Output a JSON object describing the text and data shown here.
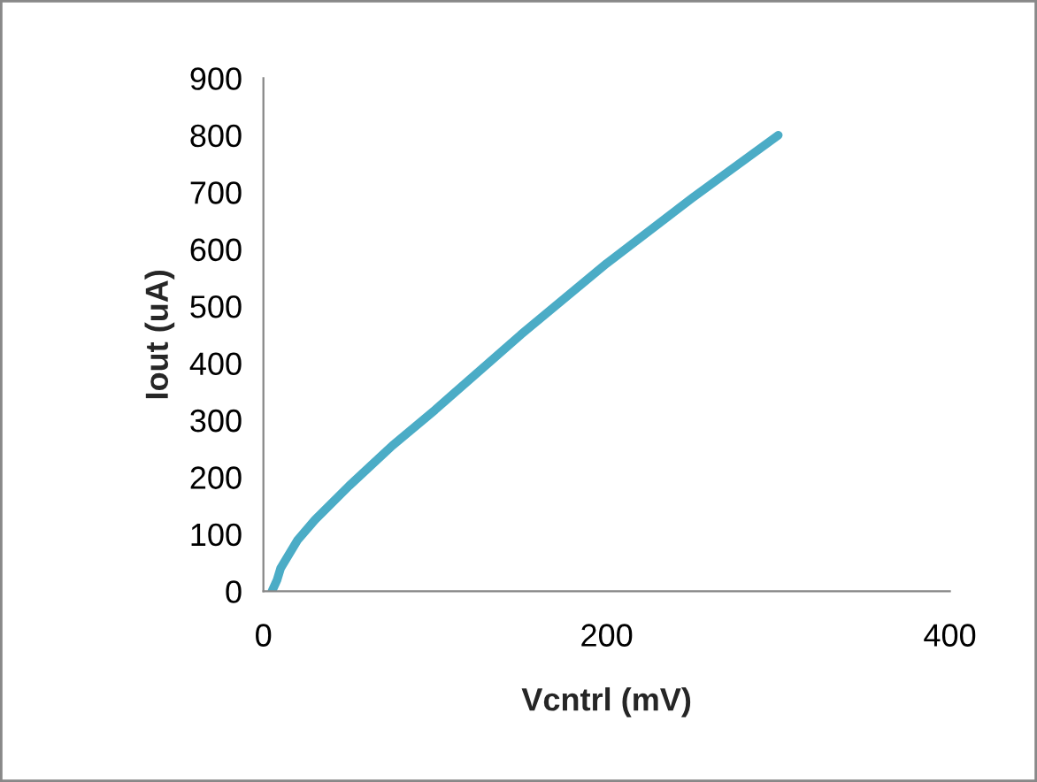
{
  "chart_data": {
    "type": "line",
    "xlabel": "Vcntrl (mV)",
    "ylabel": "Iout (uA)",
    "series": [
      {
        "color": "#4bacc6",
        "x": [
          5,
          8,
          10,
          20,
          30,
          50,
          75,
          100,
          150,
          200,
          250,
          300
        ],
        "values": [
          0,
          20,
          40,
          90,
          125,
          185,
          255,
          318,
          450,
          575,
          690,
          800
        ]
      }
    ],
    "xlim": [
      0,
      400
    ],
    "xticks": [
      0,
      200,
      400
    ],
    "ylim": [
      0,
      900
    ],
    "yticks": [
      0,
      100,
      200,
      300,
      400,
      500,
      600,
      700,
      800,
      900
    ],
    "grid": false,
    "marker": "none",
    "line_style": "solid"
  }
}
